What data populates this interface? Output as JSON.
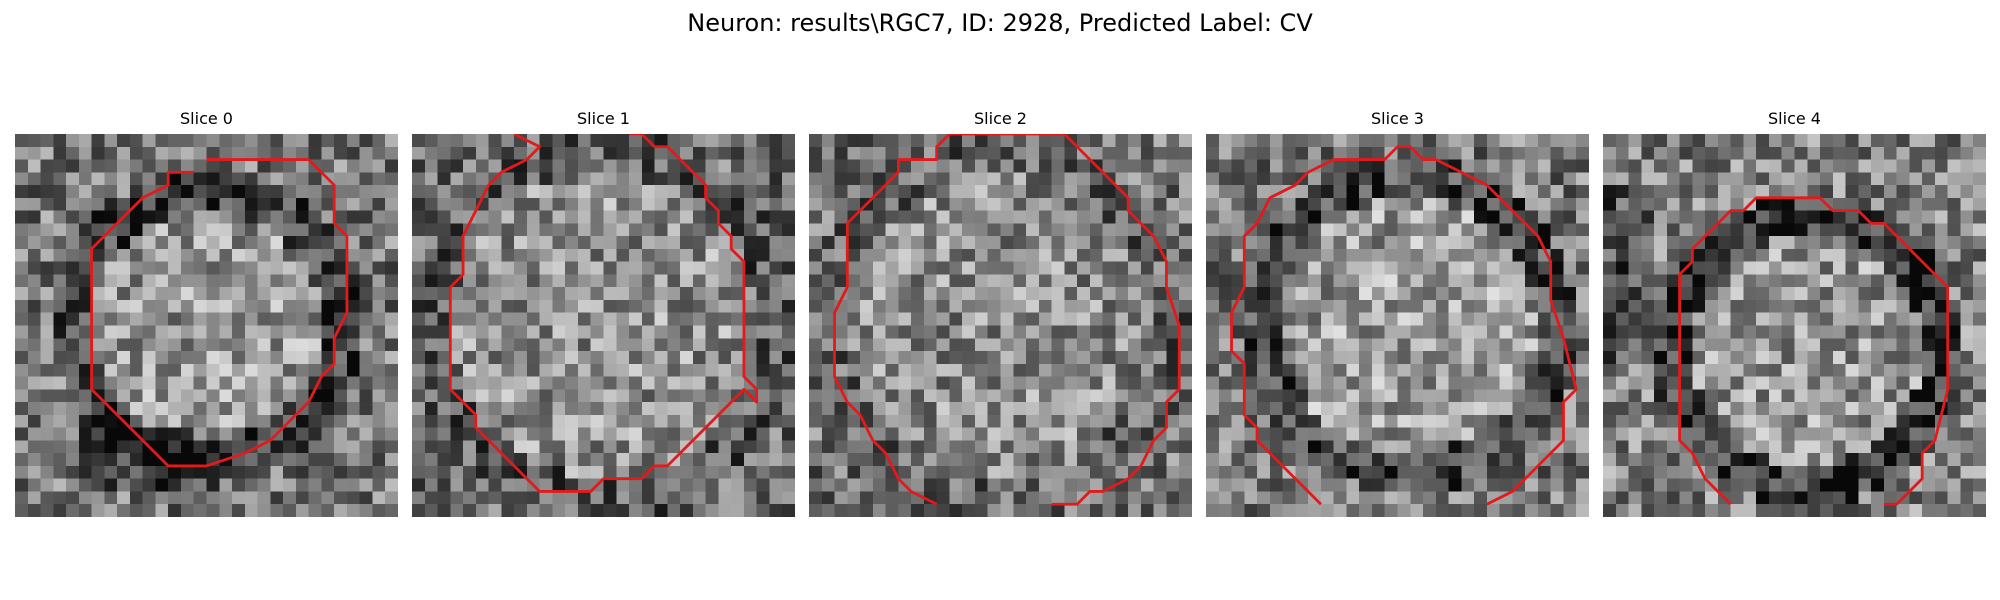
{
  "figure": {
    "title": "Neuron: results\\RGC7, ID: 2928, Predicted Label: CV"
  },
  "slices": [
    {
      "title": "Slice 0"
    },
    {
      "title": "Slice 1"
    },
    {
      "title": "Slice 2"
    },
    {
      "title": "Slice 3"
    },
    {
      "title": "Slice 4"
    }
  ],
  "style": {
    "contour_color": "#e31a1c",
    "colormap": "gray"
  }
}
